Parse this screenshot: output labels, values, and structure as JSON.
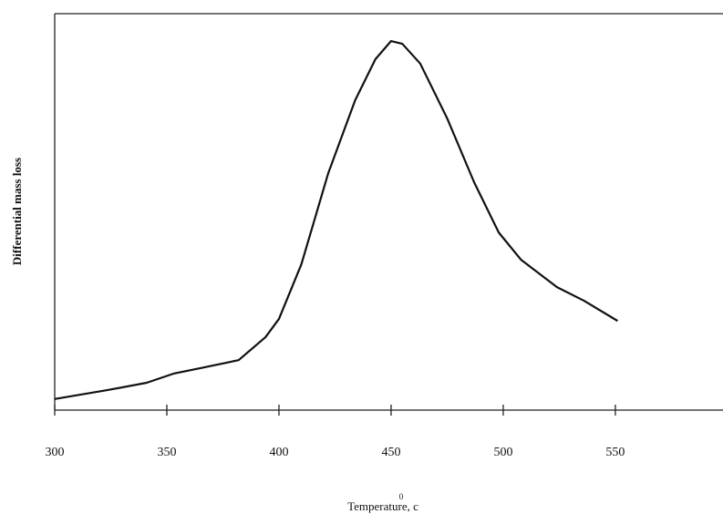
{
  "chart_data": {
    "type": "line",
    "x_label": "Temperature, c",
    "x_label_superscript": "0",
    "y_label": "Differential mass loss",
    "x": [
      300,
      324,
      341,
      353,
      365,
      382,
      394,
      400,
      410,
      422,
      434,
      443,
      450,
      455,
      463,
      475,
      487,
      498,
      508,
      524,
      536,
      551
    ],
    "series": [
      {
        "color": "#111111",
        "values": [
          2.8,
          5.1,
          6.9,
          9.2,
          10.6,
          12.6,
          18.4,
          23.0,
          36.8,
          59.8,
          78.2,
          88.5,
          93.1,
          92.4,
          87.4,
          73.6,
          57.5,
          44.8,
          37.9,
          31.0,
          27.6,
          22.5
        ]
      }
    ],
    "xlim": [
      300,
      598
    ],
    "xticks": [
      300,
      350,
      400,
      450,
      500,
      550
    ],
    "ylim": [
      0,
      100
    ]
  }
}
